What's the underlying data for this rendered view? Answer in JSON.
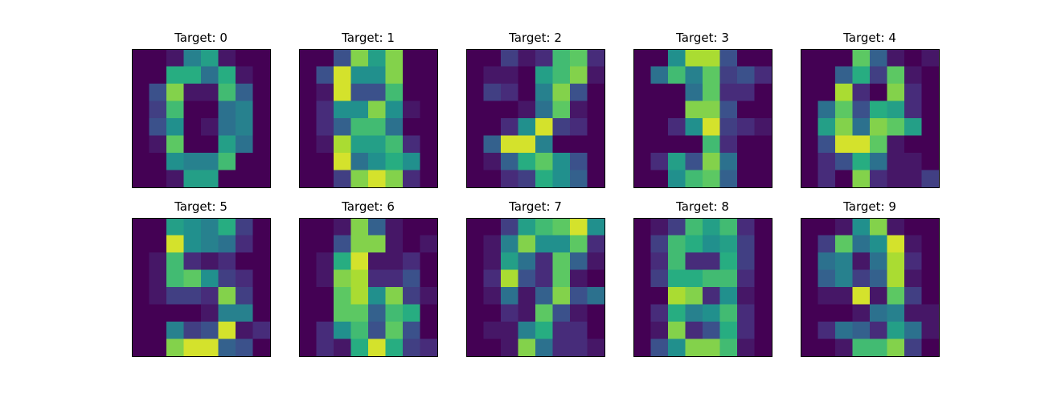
{
  "colormap": "viridis",
  "chart_data": [
    {
      "type": "heatmap",
      "title": "Target: 0",
      "value_range": [
        0,
        16
      ],
      "values": [
        [
          0,
          0,
          1,
          7,
          9,
          1,
          0,
          0
        ],
        [
          0,
          0,
          10,
          10,
          6,
          10,
          1,
          0
        ],
        [
          0,
          4,
          13,
          1,
          1,
          11,
          5,
          0
        ],
        [
          0,
          3,
          11,
          0,
          0,
          6,
          7,
          0
        ],
        [
          0,
          4,
          8,
          0,
          1,
          6,
          7,
          0
        ],
        [
          0,
          1,
          12,
          0,
          0,
          9,
          6,
          0
        ],
        [
          0,
          0,
          8,
          7,
          7,
          11,
          0,
          0
        ],
        [
          0,
          0,
          1,
          9,
          9,
          0,
          0,
          0
        ]
      ]
    },
    {
      "type": "heatmap",
      "title": "Target: 1",
      "value_range": [
        0,
        16
      ],
      "values": [
        [
          0,
          0,
          4,
          13,
          9,
          13,
          0,
          0
        ],
        [
          0,
          4,
          15,
          8,
          8,
          13,
          0,
          0
        ],
        [
          0,
          1,
          15,
          4,
          4,
          11,
          0,
          0
        ],
        [
          0,
          2,
          8,
          8,
          13,
          8,
          1,
          0
        ],
        [
          0,
          2,
          5,
          11,
          11,
          6,
          0,
          0
        ],
        [
          0,
          1,
          14,
          9,
          9,
          11,
          2,
          0
        ],
        [
          0,
          0,
          15,
          6,
          8,
          10,
          8,
          0
        ],
        [
          0,
          0,
          3,
          13,
          15,
          13,
          2,
          0
        ]
      ]
    },
    {
      "type": "heatmap",
      "title": "Target: 2",
      "value_range": [
        0,
        16
      ],
      "values": [
        [
          0,
          0,
          3,
          1,
          2,
          11,
          12,
          2
        ],
        [
          0,
          1,
          1,
          0,
          9,
          11,
          13,
          1
        ],
        [
          0,
          3,
          2,
          0,
          7,
          13,
          4,
          0
        ],
        [
          0,
          0,
          0,
          1,
          6,
          12,
          1,
          0
        ],
        [
          0,
          0,
          2,
          8,
          15,
          3,
          2,
          0
        ],
        [
          0,
          5,
          15,
          15,
          7,
          0,
          0,
          0
        ],
        [
          0,
          1,
          5,
          10,
          12,
          8,
          4,
          0
        ],
        [
          0,
          0,
          2,
          3,
          10,
          8,
          5,
          0
        ]
      ]
    },
    {
      "type": "heatmap",
      "title": "Target: 3",
      "value_range": [
        0,
        16
      ],
      "values": [
        [
          0,
          0,
          8,
          14,
          14,
          4,
          0,
          0
        ],
        [
          0,
          6,
          11,
          7,
          12,
          3,
          4,
          2
        ],
        [
          0,
          0,
          0,
          6,
          12,
          2,
          2,
          0
        ],
        [
          0,
          0,
          0,
          13,
          13,
          4,
          0,
          0
        ],
        [
          0,
          0,
          2,
          8,
          15,
          3,
          2,
          1
        ],
        [
          0,
          0,
          0,
          0,
          11,
          2,
          0,
          0
        ],
        [
          0,
          2,
          9,
          4,
          13,
          6,
          0,
          0
        ],
        [
          0,
          0,
          8,
          11,
          12,
          5,
          0,
          0
        ]
      ]
    },
    {
      "type": "heatmap",
      "title": "Target: 4",
      "value_range": [
        0,
        16
      ],
      "values": [
        [
          0,
          0,
          0,
          12,
          5,
          1,
          0,
          1
        ],
        [
          0,
          0,
          5,
          10,
          3,
          12,
          1,
          0
        ],
        [
          0,
          0,
          14,
          2,
          0,
          13,
          2,
          0
        ],
        [
          0,
          6,
          12,
          4,
          10,
          9,
          2,
          0
        ],
        [
          0,
          9,
          13,
          6,
          13,
          12,
          9,
          0
        ],
        [
          0,
          4,
          15,
          15,
          12,
          1,
          0,
          0
        ],
        [
          0,
          2,
          4,
          10,
          6,
          1,
          1,
          0
        ],
        [
          0,
          2,
          0,
          13,
          2,
          1,
          1,
          3
        ]
      ]
    },
    {
      "type": "heatmap",
      "title": "Target: 5",
      "value_range": [
        0,
        16
      ],
      "values": [
        [
          0,
          0,
          9,
          8,
          7,
          10,
          3,
          0
        ],
        [
          0,
          0,
          15,
          8,
          7,
          6,
          2,
          0
        ],
        [
          0,
          1,
          11,
          2,
          1,
          2,
          0,
          0
        ],
        [
          0,
          1,
          11,
          12,
          8,
          3,
          2,
          0
        ],
        [
          0,
          1,
          3,
          3,
          2,
          13,
          3,
          0
        ],
        [
          0,
          0,
          0,
          0,
          1,
          7,
          7,
          0
        ],
        [
          0,
          0,
          7,
          3,
          4,
          15,
          1,
          2
        ],
        [
          0,
          0,
          13,
          15,
          15,
          5,
          4,
          0
        ]
      ]
    },
    {
      "type": "heatmap",
      "title": "Target: 6",
      "value_range": [
        0,
        16
      ],
      "values": [
        [
          0,
          0,
          1,
          13,
          5,
          1,
          0,
          0
        ],
        [
          0,
          0,
          4,
          13,
          13,
          1,
          0,
          1
        ],
        [
          0,
          1,
          10,
          15,
          1,
          1,
          2,
          0
        ],
        [
          0,
          1,
          13,
          14,
          2,
          2,
          4,
          0
        ],
        [
          0,
          0,
          12,
          14,
          8,
          13,
          3,
          1
        ],
        [
          0,
          0,
          12,
          12,
          5,
          11,
          10,
          0
        ],
        [
          0,
          2,
          8,
          11,
          4,
          12,
          4,
          0
        ],
        [
          0,
          2,
          1,
          10,
          15,
          10,
          3,
          2
        ]
      ]
    },
    {
      "type": "heatmap",
      "title": "Target: 7",
      "value_range": [
        0,
        16
      ],
      "values": [
        [
          0,
          0,
          3,
          9,
          11,
          12,
          15,
          8
        ],
        [
          0,
          1,
          7,
          13,
          8,
          8,
          12,
          2
        ],
        [
          0,
          1,
          9,
          6,
          2,
          12,
          5,
          1
        ],
        [
          0,
          2,
          14,
          4,
          2,
          12,
          1,
          0
        ],
        [
          0,
          1,
          6,
          1,
          5,
          13,
          4,
          6
        ],
        [
          0,
          0,
          2,
          1,
          12,
          4,
          1,
          0
        ],
        [
          0,
          1,
          1,
          7,
          10,
          2,
          2,
          0
        ],
        [
          0,
          0,
          1,
          13,
          6,
          2,
          2,
          1
        ]
      ]
    },
    {
      "type": "heatmap",
      "title": "Target: 8",
      "value_range": [
        0,
        16
      ],
      "values": [
        [
          0,
          1,
          3,
          11,
          9,
          11,
          2,
          0
        ],
        [
          0,
          3,
          11,
          10,
          8,
          9,
          3,
          0
        ],
        [
          0,
          2,
          11,
          2,
          2,
          10,
          3,
          0
        ],
        [
          0,
          3,
          10,
          10,
          11,
          11,
          2,
          0
        ],
        [
          0,
          0,
          14,
          13,
          2,
          8,
          1,
          0
        ],
        [
          0,
          2,
          10,
          7,
          8,
          11,
          2,
          0
        ],
        [
          0,
          1,
          13,
          2,
          4,
          10,
          2,
          0
        ],
        [
          0,
          4,
          8,
          13,
          13,
          11,
          1,
          0
        ]
      ]
    },
    {
      "type": "heatmap",
      "title": "Target: 9",
      "value_range": [
        0,
        16
      ],
      "values": [
        [
          0,
          0,
          1,
          8,
          13,
          1,
          0,
          0
        ],
        [
          0,
          3,
          12,
          6,
          8,
          15,
          1,
          0
        ],
        [
          0,
          6,
          7,
          1,
          6,
          14,
          2,
          0
        ],
        [
          0,
          5,
          7,
          3,
          5,
          14,
          1,
          0
        ],
        [
          0,
          1,
          1,
          15,
          1,
          12,
          3,
          0
        ],
        [
          0,
          0,
          0,
          1,
          6,
          7,
          1,
          1
        ],
        [
          0,
          2,
          6,
          5,
          2,
          9,
          6,
          1
        ],
        [
          0,
          0,
          1,
          11,
          11,
          13,
          3,
          0
        ]
      ]
    }
  ]
}
